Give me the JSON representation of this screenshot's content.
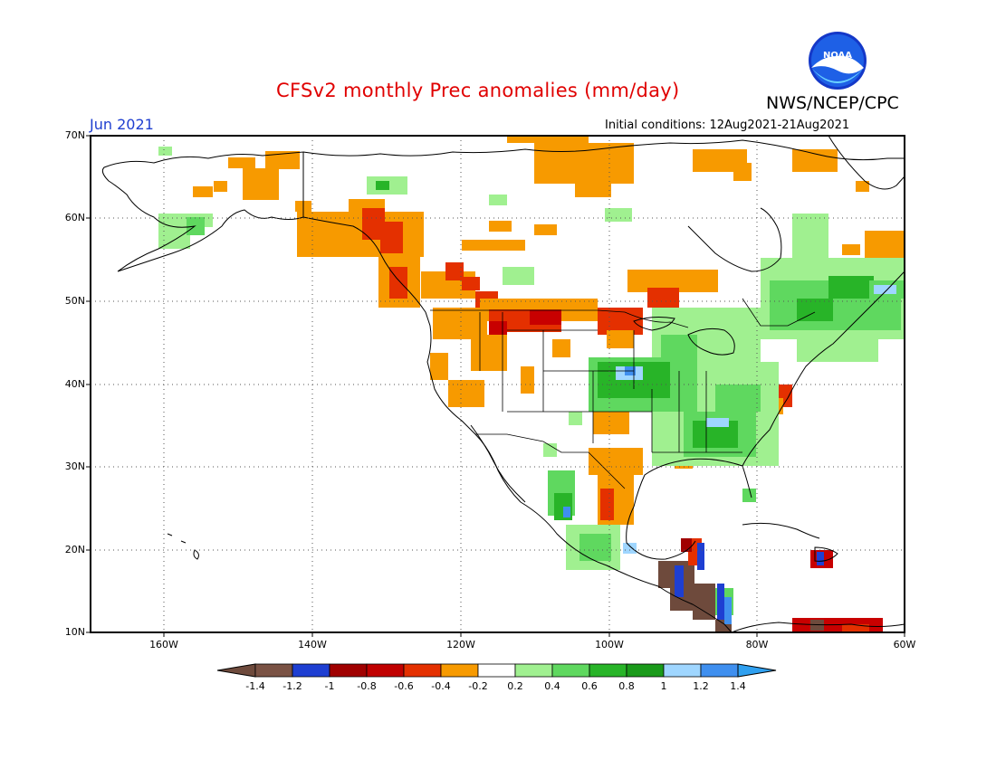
{
  "header": {
    "title": "CFSv2 monthly Prec anomalies (mm/day)",
    "agency": "NWS/NCEP/CPC",
    "logo_text": "NOAA",
    "target_month": "Jun 2021",
    "initial_conditions": "Initial conditions: 12Aug2021-21Aug2021"
  },
  "map": {
    "lat_labels": [
      "70N",
      "60N",
      "50N",
      "40N",
      "30N",
      "20N",
      "10N"
    ],
    "lon_labels": [
      "160W",
      "140W",
      "120W",
      "100W",
      "80W",
      "60W"
    ],
    "lon_range": [
      -170,
      -60
    ],
    "lat_range": [
      10,
      70
    ],
    "gridlines": "dotted"
  },
  "colorbar": {
    "tick_labels": [
      "-1.4",
      "-1.2",
      "-1",
      "-0.8",
      "-0.6",
      "-0.4",
      "-0.2",
      "0.2",
      "0.4",
      "0.6",
      "0.8",
      "1",
      "1.2",
      "1.4"
    ],
    "colors": [
      "#6e4a3c",
      "#7a5244",
      "#1e3fd2",
      "#a00000",
      "#c80000",
      "#f04010",
      "#f79a00",
      "#ffffff",
      "#a0f090",
      "#5fd85f",
      "#28b428",
      "#1a9a1a",
      "#9fd6ff",
      "#3f8fef",
      "#2fa0f0"
    ]
  },
  "anomaly_legend": {
    "dry_strong": "#c81e00",
    "dry": "#e43000",
    "dry_mild": "#f79a00",
    "wet_mild": "#a0f090",
    "wet": "#5fd85f",
    "wet_strong": "#28b428",
    "very_wet": "#3f8fef",
    "extreme_dry": "#6e4a3c",
    "extreme_wet": "#1e3fd2"
  }
}
